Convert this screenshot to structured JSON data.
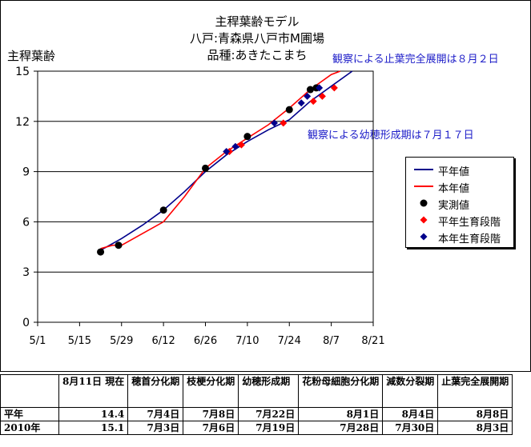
{
  "chart_data": {
    "type": "line",
    "title_lines": [
      "主稈葉齢モデル",
      "八戸:青森県八戸市M圃場",
      "品種:あきたこまち"
    ],
    "ylabel": "主稈葉齢",
    "xlabel": "",
    "ylim": [
      0,
      15
    ],
    "yticks": [
      0,
      3,
      6,
      9,
      12,
      15
    ],
    "xlim": [
      "5/1",
      "8/21"
    ],
    "xticks": [
      "5/1",
      "5/15",
      "5/29",
      "6/12",
      "6/26",
      "7/10",
      "7/24",
      "8/7",
      "8/21"
    ],
    "grid": "horizontal",
    "legend_position": "right",
    "annotations": [
      "観察による止葉完全展開は８月２日",
      "観察による幼穂形成期は７月１７日"
    ],
    "series": [
      {
        "name": "平年値",
        "kind": "line",
        "color": "#00008b",
        "points": [
          [
            "5/22",
            4.3
          ],
          [
            "5/29",
            5.0
          ],
          [
            "6/5",
            5.8
          ],
          [
            "6/12",
            6.7
          ],
          [
            "6/19",
            7.8
          ],
          [
            "6/26",
            9.0
          ],
          [
            "7/3",
            10.0
          ],
          [
            "7/10",
            10.8
          ],
          [
            "7/17",
            11.5
          ],
          [
            "7/24",
            12.1
          ],
          [
            "7/31",
            13.2
          ],
          [
            "8/7",
            14.1
          ],
          [
            "8/14",
            15.0
          ]
        ]
      },
      {
        "name": "本年値",
        "kind": "line",
        "color": "#ff0000",
        "points": [
          [
            "5/22",
            4.4
          ],
          [
            "5/26",
            4.6
          ],
          [
            "5/29",
            4.6
          ],
          [
            "6/5",
            5.3
          ],
          [
            "6/12",
            6.0
          ],
          [
            "6/19",
            7.5
          ],
          [
            "6/26",
            9.2
          ],
          [
            "7/3",
            10.2
          ],
          [
            "7/10",
            11.0
          ],
          [
            "7/17",
            11.8
          ],
          [
            "7/24",
            12.8
          ],
          [
            "7/31",
            13.9
          ],
          [
            "8/7",
            14.8
          ],
          [
            "8/10",
            15.0
          ]
        ]
      },
      {
        "name": "実測値",
        "kind": "marker",
        "marker": "circle",
        "color": "#000000",
        "points": [
          [
            "5/22",
            4.2
          ],
          [
            "5/28",
            4.6
          ],
          [
            "6/12",
            6.7
          ],
          [
            "6/26",
            9.2
          ],
          [
            "7/10",
            11.1
          ],
          [
            "7/24",
            12.7
          ],
          [
            "7/31",
            13.9
          ],
          [
            "8/2",
            14.0
          ]
        ]
      },
      {
        "name": "平年生育段階",
        "kind": "marker",
        "marker": "diamond",
        "color": "#ff0000",
        "points": [
          [
            "7/4",
            10.2
          ],
          [
            "7/8",
            10.6
          ],
          [
            "7/22",
            11.9
          ],
          [
            "8/1",
            13.2
          ],
          [
            "8/4",
            13.5
          ],
          [
            "8/8",
            14.0
          ]
        ]
      },
      {
        "name": "本年生育段階",
        "kind": "marker",
        "marker": "diamond",
        "color": "#00008b",
        "points": [
          [
            "7/3",
            10.2
          ],
          [
            "7/6",
            10.5
          ],
          [
            "7/19",
            11.9
          ],
          [
            "7/28",
            13.1
          ],
          [
            "7/30",
            13.5
          ],
          [
            "8/3",
            14.0
          ]
        ]
      }
    ]
  },
  "legend": {
    "items": [
      {
        "label": "平年値",
        "sym": "line",
        "color": "#00008b"
      },
      {
        "label": "本年値",
        "sym": "line",
        "color": "#ff0000"
      },
      {
        "label": "実測値",
        "sym": "circle",
        "color": "#000000"
      },
      {
        "label": "平年生育段階",
        "sym": "diamond",
        "color": "#ff0000"
      },
      {
        "label": "本年生育段階",
        "sym": "diamond",
        "color": "#00008b"
      }
    ]
  },
  "table": {
    "headers": [
      "",
      "8月11日 現在",
      "穂首分化期",
      "枝梗分化期",
      "幼穂形成期",
      "花粉母細胞分化期",
      "減数分裂期",
      "止葉完全展開期"
    ],
    "rows": [
      [
        "平年",
        "14.4",
        "7月4日",
        "7月8日",
        "7月22日",
        "8月1日",
        "8月4日",
        "8月8日"
      ],
      [
        "2010年",
        "15.1",
        "7月3日",
        "7月6日",
        "7月19日",
        "7月28日",
        "7月30日",
        "8月3日"
      ]
    ]
  }
}
